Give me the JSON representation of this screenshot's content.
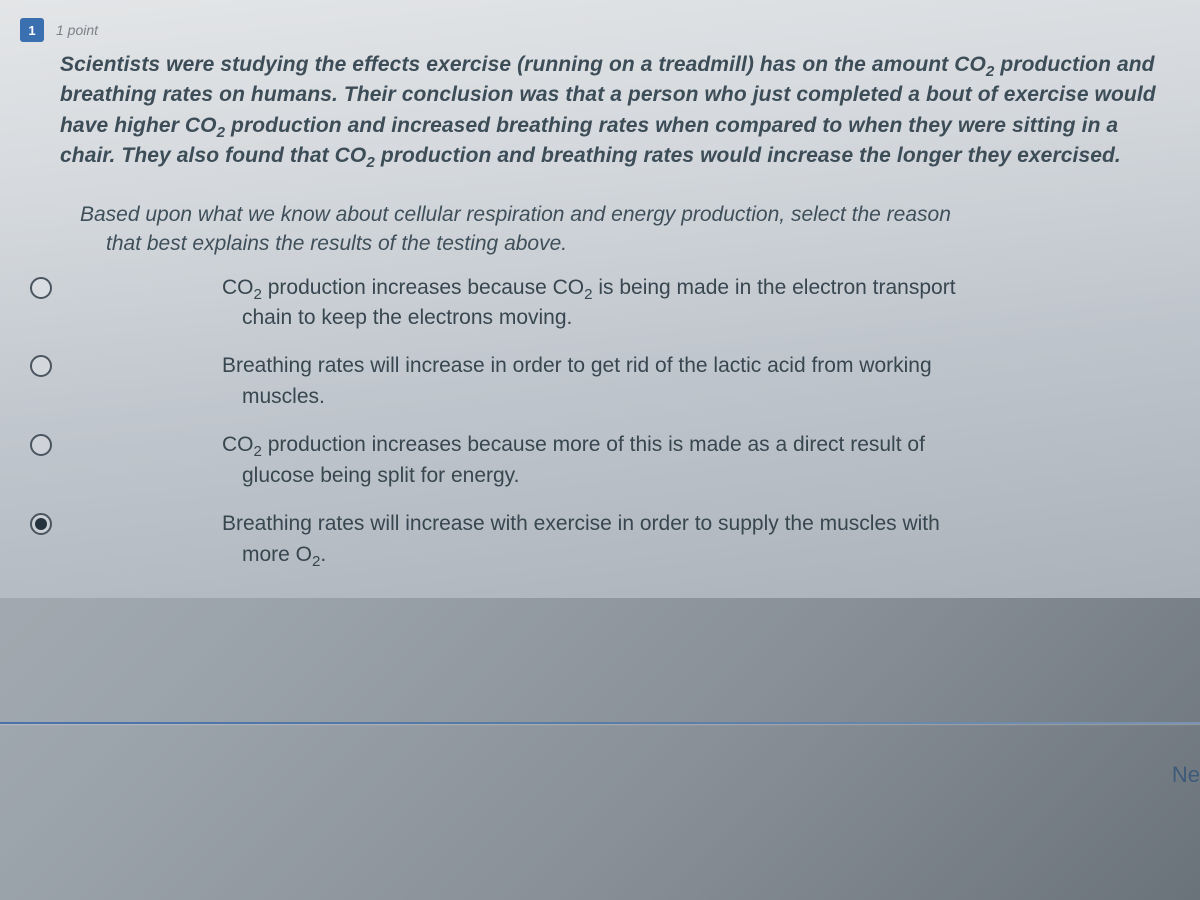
{
  "header": {
    "question_number": "1",
    "points_label": "1 point"
  },
  "stem_html": "Scientists were studying the effects exercise (running on a treadmill) has on the amount CO<sub>2</sub> production and breathing rates on humans. Their conclusion was that a person who just completed a bout of exercise would have higher CO<sub>2</sub> production and increased breathing rates when compared to when they were sitting in a chair. They also found that CO<sub>2</sub> production and breathing rates would increase the longer they exercised.",
  "prompt": {
    "line1": "Based upon what we know about cellular respiration and energy production, select the reason",
    "line2": "that best explains the results of the testing above."
  },
  "options": [
    {
      "selected": false,
      "line1_html": "CO<sub>2</sub> production increases because CO<sub>2</sub> is being made in the electron transport",
      "line2_html": "chain to keep the electrons moving."
    },
    {
      "selected": false,
      "line1_html": "Breathing rates will increase in order to get rid of the lactic acid from working",
      "line2_html": "muscles."
    },
    {
      "selected": false,
      "line1_html": "CO<sub>2</sub> production increases because more of this is made as a direct result of",
      "line2_html": "glucose being split for energy."
    },
    {
      "selected": true,
      "line1_html": "Breathing rates will increase with exercise in order to supply the muscles with",
      "line2_html": "more O<sub>2</sub>."
    }
  ],
  "nav": {
    "next_label": "Ne"
  },
  "colors": {
    "text_primary": "#384650",
    "stem_text": "#3d4d58",
    "divider": "#4a72a9",
    "badge_bg": "#3a6fb0"
  }
}
